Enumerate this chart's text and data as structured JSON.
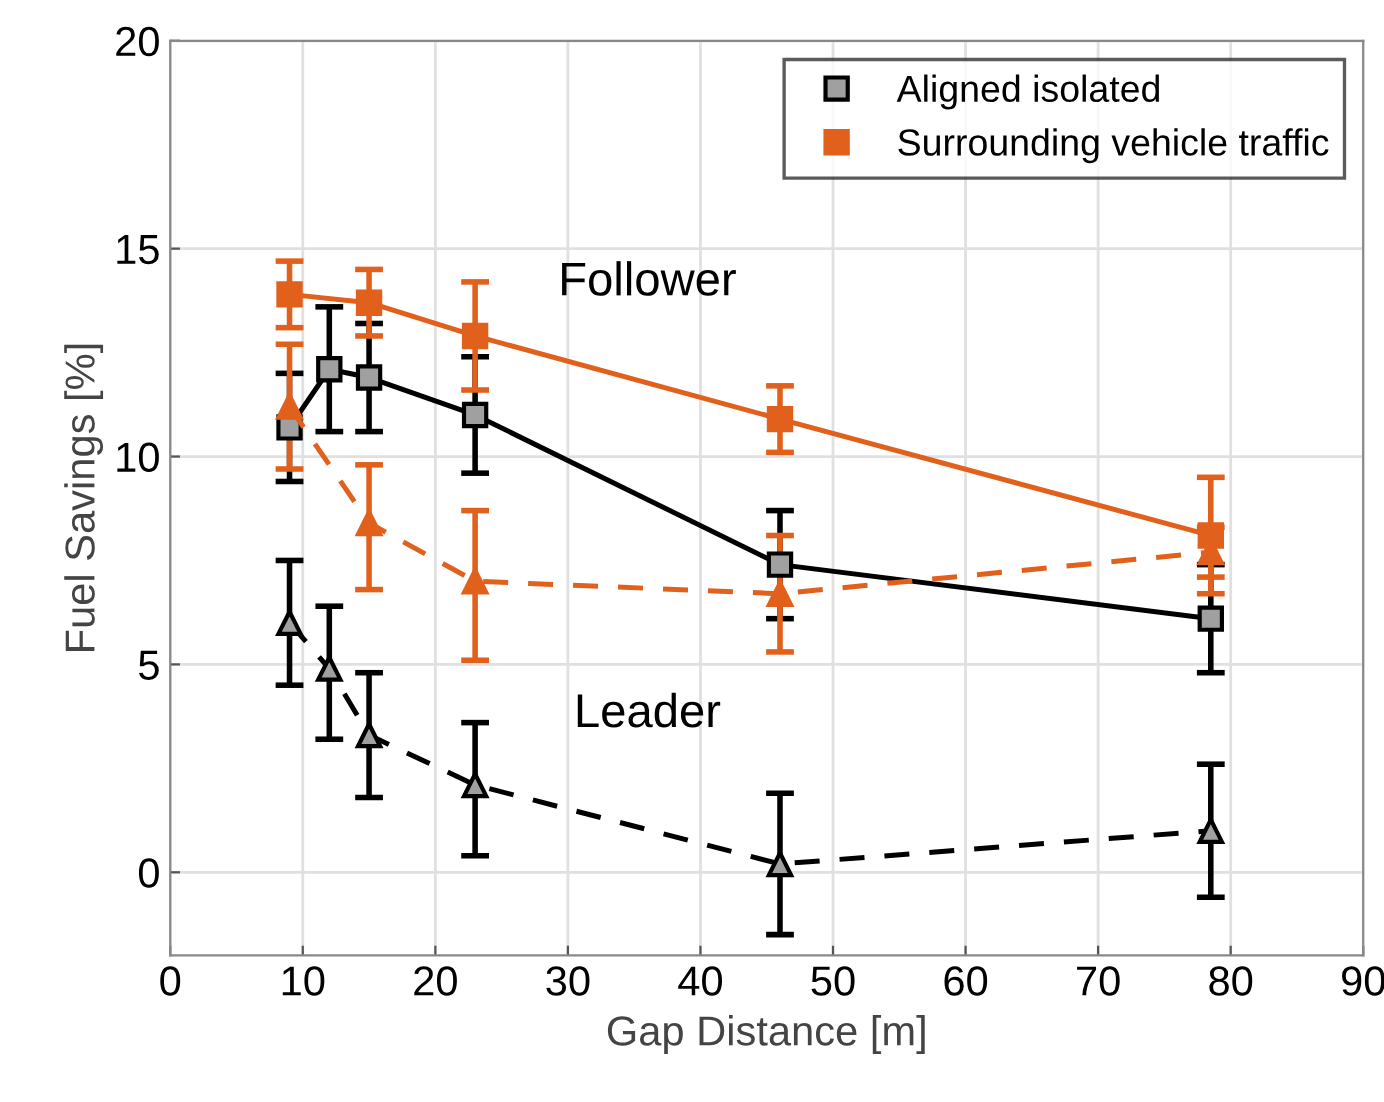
{
  "chart_data": {
    "type": "line",
    "xlabel": "Gap Distance [m]",
    "ylabel": "Fuel Savings [%]",
    "xlim": [
      0,
      90
    ],
    "xticks": [
      0,
      10,
      20,
      30,
      40,
      50,
      60,
      70,
      80,
      90
    ],
    "ylim": [
      -2,
      20
    ],
    "yticks": [
      0,
      5,
      10,
      15,
      20
    ],
    "grid": true,
    "legend": "top right",
    "annotations": [
      "Follower",
      "Leader"
    ],
    "series": [
      {
        "name": "Aligned isolated",
        "color": "#000000",
        "marker": "square",
        "line_style": "solid",
        "x": [
          9,
          12,
          15,
          23,
          46,
          78.5
        ],
        "values": [
          10.7,
          12.1,
          11.9,
          11.0,
          7.4,
          6.1
        ],
        "errors": [
          [
            9.4,
            12.0
          ],
          [
            10.6,
            13.6
          ],
          [
            10.6,
            13.2
          ],
          [
            9.6,
            12.4
          ],
          [
            6.1,
            8.7
          ],
          [
            4.8,
            7.4
          ]
        ]
      },
      {
        "name": "Surrounding vehicle traffic",
        "color": "#e0601c",
        "marker": "square",
        "line_style": "solid",
        "x": [
          9,
          15,
          23,
          46,
          78.5
        ],
        "values": [
          13.9,
          13.7,
          12.9,
          10.9,
          8.1
        ],
        "errors": [
          [
            13.1,
            14.7
          ],
          [
            12.9,
            14.5
          ],
          [
            11.6,
            14.2
          ],
          [
            10.1,
            11.7
          ],
          [
            6.7,
            9.5
          ]
        ]
      },
      {
        "color": "#e0601c",
        "marker": "triangle",
        "line_style": "dashed",
        "x": [
          9,
          15,
          23,
          46,
          78.5
        ],
        "values": [
          11.2,
          8.4,
          7.0,
          6.7,
          7.7
        ],
        "errors": [
          [
            9.7,
            12.7
          ],
          [
            6.8,
            9.8
          ],
          [
            5.1,
            8.7
          ],
          [
            5.3,
            8.1
          ],
          [
            7.1,
            8.3
          ]
        ]
      },
      {
        "color": "#000000",
        "marker": "triangle",
        "line_style": "dashed",
        "x": [
          9,
          12,
          15,
          23,
          46,
          78.5
        ],
        "values": [
          6.0,
          4.9,
          3.3,
          2.1,
          0.2,
          1.0
        ],
        "errors": [
          [
            4.5,
            7.5
          ],
          [
            3.2,
            6.4
          ],
          [
            1.8,
            4.8
          ],
          [
            0.4,
            3.6
          ],
          [
            -1.5,
            1.9
          ],
          [
            -0.6,
            2.6
          ]
        ]
      }
    ]
  }
}
